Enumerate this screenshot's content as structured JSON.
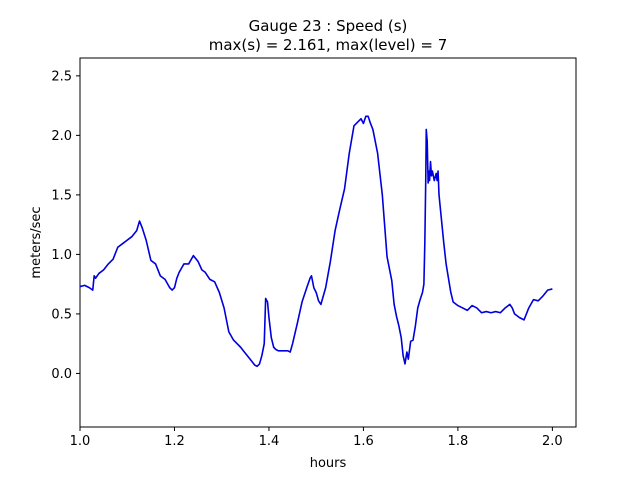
{
  "chart_data": {
    "type": "line",
    "title": "Gauge 23 : Speed (s)",
    "subtitle": "max(s) =   2.161,    max(level) = 7",
    "xlabel": "hours",
    "ylabel": "meters/sec",
    "xlim": [
      1.0,
      2.05
    ],
    "ylim": [
      -0.45,
      2.65
    ],
    "xticks": [
      1.0,
      1.2,
      1.4,
      1.6,
      1.8,
      2.0
    ],
    "xtick_labels": [
      "1.0",
      "1.2",
      "1.4",
      "1.6",
      "1.8",
      "2.0"
    ],
    "yticks": [
      0.0,
      0.5,
      1.0,
      1.5,
      2.0,
      2.5
    ],
    "ytick_labels": [
      "0.0",
      "0.5",
      "1.0",
      "1.5",
      "2.0",
      "2.5"
    ],
    "grid": false,
    "legend": "none",
    "series": [
      {
        "color": "#0000dd",
        "x": [
          1.0,
          1.01,
          1.02,
          1.027,
          1.03,
          1.033,
          1.04,
          1.05,
          1.06,
          1.07,
          1.08,
          1.09,
          1.1,
          1.11,
          1.12,
          1.126,
          1.132,
          1.14,
          1.15,
          1.16,
          1.17,
          1.18,
          1.19,
          1.195,
          1.2,
          1.205,
          1.21,
          1.22,
          1.23,
          1.24,
          1.25,
          1.258,
          1.265,
          1.275,
          1.285,
          1.295,
          1.305,
          1.315,
          1.325,
          1.33,
          1.34,
          1.35,
          1.36,
          1.37,
          1.375,
          1.38,
          1.385,
          1.39,
          1.393,
          1.397,
          1.4,
          1.405,
          1.41,
          1.415,
          1.42,
          1.43,
          1.44,
          1.445,
          1.45,
          1.46,
          1.47,
          1.48,
          1.487,
          1.49,
          1.495,
          1.5,
          1.505,
          1.51,
          1.52,
          1.53,
          1.54,
          1.55,
          1.56,
          1.57,
          1.58,
          1.59,
          1.595,
          1.6,
          1.605,
          1.61,
          1.615,
          1.62,
          1.625,
          1.63,
          1.64,
          1.65,
          1.655,
          1.66,
          1.665,
          1.67,
          1.675,
          1.68,
          1.684,
          1.688,
          1.692,
          1.695,
          1.7,
          1.705,
          1.71,
          1.715,
          1.72,
          1.725,
          1.728,
          1.73,
          1.732,
          1.733,
          1.735,
          1.737,
          1.738,
          1.74,
          1.742,
          1.744,
          1.746,
          1.75,
          1.754,
          1.756,
          1.758,
          1.76,
          1.765,
          1.77,
          1.775,
          1.78,
          1.785,
          1.79,
          1.8,
          1.81,
          1.82,
          1.83,
          1.84,
          1.85,
          1.86,
          1.87,
          1.88,
          1.89,
          1.9,
          1.91,
          1.915,
          1.92,
          1.93,
          1.94,
          1.95,
          1.96,
          1.97,
          1.98,
          1.99,
          2.0
        ],
        "y": [
          0.73,
          0.74,
          0.72,
          0.7,
          0.82,
          0.8,
          0.84,
          0.87,
          0.92,
          0.96,
          1.06,
          1.09,
          1.12,
          1.15,
          1.2,
          1.28,
          1.22,
          1.12,
          0.95,
          0.92,
          0.82,
          0.79,
          0.72,
          0.7,
          0.72,
          0.8,
          0.85,
          0.92,
          0.92,
          0.99,
          0.94,
          0.87,
          0.85,
          0.79,
          0.77,
          0.68,
          0.55,
          0.35,
          0.28,
          0.26,
          0.22,
          0.17,
          0.12,
          0.07,
          0.06,
          0.08,
          0.15,
          0.25,
          0.63,
          0.6,
          0.47,
          0.3,
          0.22,
          0.2,
          0.19,
          0.19,
          0.19,
          0.18,
          0.25,
          0.42,
          0.6,
          0.72,
          0.8,
          0.82,
          0.72,
          0.68,
          0.61,
          0.58,
          0.72,
          0.94,
          1.2,
          1.38,
          1.55,
          1.85,
          2.08,
          2.12,
          2.14,
          2.1,
          2.16,
          2.16,
          2.1,
          2.05,
          1.95,
          1.85,
          1.5,
          0.98,
          0.88,
          0.78,
          0.58,
          0.48,
          0.4,
          0.3,
          0.15,
          0.08,
          0.18,
          0.12,
          0.27,
          0.28,
          0.4,
          0.55,
          0.62,
          0.68,
          0.75,
          1.1,
          1.65,
          2.05,
          1.95,
          1.6,
          1.7,
          1.62,
          1.78,
          1.66,
          1.7,
          1.62,
          1.68,
          1.62,
          1.7,
          1.5,
          1.3,
          1.1,
          0.92,
          0.8,
          0.68,
          0.6,
          0.57,
          0.55,
          0.53,
          0.57,
          0.55,
          0.51,
          0.52,
          0.51,
          0.52,
          0.51,
          0.55,
          0.58,
          0.55,
          0.5,
          0.47,
          0.45,
          0.55,
          0.62,
          0.61,
          0.65,
          0.7,
          0.71
        ]
      }
    ]
  }
}
